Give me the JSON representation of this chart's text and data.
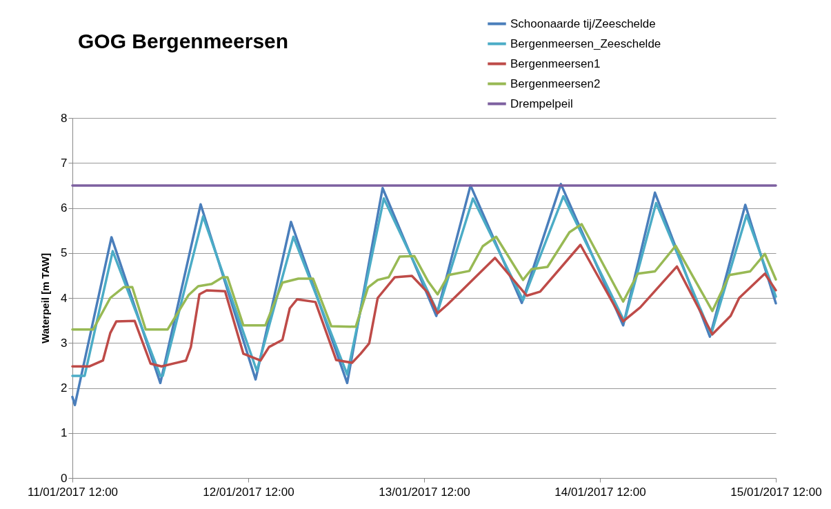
{
  "chart_data": {
    "type": "line",
    "title": "GOG Bergenmeersen",
    "ylabel": "Waterpeil [m TAW]",
    "xlim": [
      "2017-01-11T12:00",
      "2017-01-15T12:00"
    ],
    "xticks": [
      {
        "value": "2017-01-11T12:00",
        "label": "11/01/2017 12:00"
      },
      {
        "value": "2017-01-12T12:00",
        "label": "12/01/2017 12:00"
      },
      {
        "value": "2017-01-13T12:00",
        "label": "13/01/2017 12:00"
      },
      {
        "value": "2017-01-14T12:00",
        "label": "14/01/2017 12:00"
      },
      {
        "value": "2017-01-15T12:00",
        "label": "15/01/2017 12:00"
      }
    ],
    "ylim": [
      0,
      8
    ],
    "yticks": [
      0,
      1,
      2,
      3,
      4,
      5,
      6,
      7,
      8
    ],
    "grid": "y",
    "legend": "top right",
    "marker": "none",
    "line_style": "solid",
    "series": [
      {
        "name": "Schoonaarde tij/Zeeschelde",
        "color": "#4a7ebb",
        "x": [
          "2017-01-11T12:00",
          "2017-01-11T12:20",
          "2017-01-11T17:20",
          "2017-01-12T00:00",
          "2017-01-12T05:30",
          "2017-01-12T13:00",
          "2017-01-12T17:50",
          "2017-01-13T01:30",
          "2017-01-13T06:20",
          "2017-01-13T13:40",
          "2017-01-13T18:20",
          "2017-01-14T01:20",
          "2017-01-14T06:40",
          "2017-01-14T15:10",
          "2017-01-14T19:30",
          "2017-01-15T03:00",
          "2017-01-15T07:50",
          "2017-01-15T12:00"
        ],
        "values": [
          1.8,
          1.62,
          5.35,
          2.11,
          6.08,
          2.19,
          5.69,
          2.11,
          6.44,
          3.6,
          6.5,
          3.89,
          6.53,
          3.39,
          6.34,
          3.14,
          6.07,
          3.88
        ]
      },
      {
        "name": "Bergenmeersen_Zeeschelde",
        "color": "#4bacc6",
        "x": [
          "2017-01-11T12:00",
          "2017-01-11T13:40",
          "2017-01-11T17:30",
          "2017-01-12T00:00",
          "2017-01-12T00:20",
          "2017-01-12T05:50",
          "2017-01-12T13:10",
          "2017-01-12T18:10",
          "2017-01-13T01:30",
          "2017-01-13T06:30",
          "2017-01-13T13:50",
          "2017-01-13T18:40",
          "2017-01-14T01:30",
          "2017-01-14T07:00",
          "2017-01-14T15:20",
          "2017-01-14T19:40",
          "2017-01-15T03:10",
          "2017-01-15T08:00",
          "2017-01-15T12:00"
        ],
        "values": [
          2.27,
          2.27,
          5.04,
          2.27,
          2.27,
          5.81,
          2.38,
          5.36,
          2.3,
          6.21,
          3.69,
          6.21,
          3.95,
          6.26,
          3.48,
          6.11,
          3.19,
          5.84,
          4.03
        ]
      },
      {
        "name": "Bergenmeersen1",
        "color": "#be4b48",
        "x": [
          "2017-01-11T12:00",
          "2017-01-11T14:20",
          "2017-01-11T16:10",
          "2017-01-11T17:10",
          "2017-01-11T18:00",
          "2017-01-11T20:30",
          "2017-01-11T22:40",
          "2017-01-12T00:10",
          "2017-01-12T03:30",
          "2017-01-12T04:10",
          "2017-01-12T05:20",
          "2017-01-12T06:20",
          "2017-01-12T08:50",
          "2017-01-12T11:20",
          "2017-01-12T13:40",
          "2017-01-12T14:50",
          "2017-01-12T16:40",
          "2017-01-12T17:40",
          "2017-01-12T18:40",
          "2017-01-12T21:10",
          "2017-01-13T00:00",
          "2017-01-13T02:10",
          "2017-01-13T03:20",
          "2017-01-13T04:30",
          "2017-01-13T05:40",
          "2017-01-13T08:00",
          "2017-01-13T10:20",
          "2017-01-13T12:30",
          "2017-01-13T13:50",
          "2017-01-13T15:10",
          "2017-01-13T17:10",
          "2017-01-13T21:40",
          "2017-01-14T02:00",
          "2017-01-14T03:50",
          "2017-01-14T09:20",
          "2017-01-14T15:10",
          "2017-01-14T17:30",
          "2017-01-14T22:30",
          "2017-01-15T03:20",
          "2017-01-15T05:50",
          "2017-01-15T07:00",
          "2017-01-15T10:30",
          "2017-01-15T12:00"
        ],
        "values": [
          2.48,
          2.48,
          2.61,
          3.22,
          3.48,
          3.49,
          2.54,
          2.48,
          2.61,
          2.91,
          4.08,
          4.17,
          4.15,
          2.76,
          2.61,
          2.91,
          3.07,
          3.77,
          3.97,
          3.91,
          2.62,
          2.56,
          2.76,
          2.99,
          4.0,
          4.46,
          4.49,
          4.12,
          3.66,
          3.85,
          4.17,
          4.89,
          4.05,
          4.14,
          5.18,
          3.48,
          3.79,
          4.7,
          3.19,
          3.6,
          4.0,
          4.54,
          4.17
        ]
      },
      {
        "name": "Bergenmeersen2",
        "color": "#98b954",
        "x": [
          "2017-01-11T12:00",
          "2017-01-11T14:50",
          "2017-01-11T17:10",
          "2017-01-11T19:00",
          "2017-01-11T20:10",
          "2017-01-11T22:00",
          "2017-01-12T01:00",
          "2017-01-12T03:50",
          "2017-01-12T05:10",
          "2017-01-12T07:00",
          "2017-01-12T08:30",
          "2017-01-12T09:10",
          "2017-01-12T11:20",
          "2017-01-12T14:20",
          "2017-01-12T16:40",
          "2017-01-12T18:50",
          "2017-01-12T20:50",
          "2017-01-12T23:20",
          "2017-01-13T02:40",
          "2017-01-13T04:20",
          "2017-01-13T05:40",
          "2017-01-13T07:10",
          "2017-01-13T08:40",
          "2017-01-13T10:40",
          "2017-01-13T12:30",
          "2017-01-13T13:50",
          "2017-01-13T15:20",
          "2017-01-13T18:10",
          "2017-01-13T20:00",
          "2017-01-13T21:50",
          "2017-01-14T01:30",
          "2017-01-14T02:40",
          "2017-01-14T04:50",
          "2017-01-14T07:50",
          "2017-01-14T09:30",
          "2017-01-14T15:10",
          "2017-01-14T17:10",
          "2017-01-14T19:30",
          "2017-01-14T22:20",
          "2017-01-15T03:20",
          "2017-01-15T05:40",
          "2017-01-15T08:30",
          "2017-01-15T10:30",
          "2017-01-15T12:00"
        ],
        "values": [
          3.3,
          3.3,
          4.0,
          4.24,
          4.24,
          3.3,
          3.3,
          4.06,
          4.26,
          4.31,
          4.46,
          4.46,
          3.39,
          3.39,
          4.34,
          4.43,
          4.43,
          3.37,
          3.36,
          4.23,
          4.4,
          4.46,
          4.92,
          4.93,
          4.38,
          4.08,
          4.51,
          4.6,
          5.15,
          5.36,
          4.4,
          4.64,
          4.69,
          5.46,
          5.64,
          3.92,
          4.54,
          4.59,
          5.16,
          3.71,
          4.51,
          4.59,
          4.98,
          4.41
        ]
      },
      {
        "name": "Drempelpeil",
        "color": "#7d60a0",
        "x": [
          "2017-01-11T12:00",
          "2017-01-15T12:00"
        ],
        "values": [
          6.5,
          6.5
        ]
      }
    ]
  }
}
